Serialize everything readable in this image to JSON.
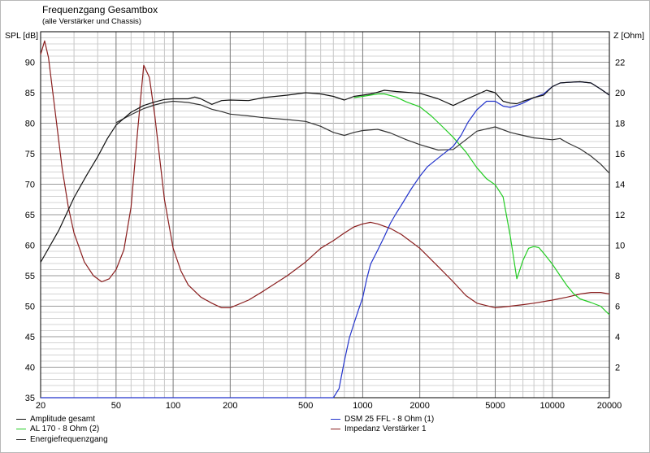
{
  "chart_data": {
    "type": "line",
    "title": "Frequenzgang Gesamtbox",
    "subtitle": "(alle Verstärker und Chassis)",
    "xscale": "log",
    "xlim": [
      20,
      20000
    ],
    "ylim_left": [
      35,
      95
    ],
    "ylim_right": [
      0,
      24
    ],
    "ylabel_left": "SPL [dB]",
    "ylabel_right": "Z [Ohm]",
    "grid": true,
    "legend_position": "bottom",
    "x_ticks": [
      20,
      50,
      100,
      200,
      500,
      1000,
      2000,
      5000,
      10000,
      20000
    ],
    "y_ticks_left": [
      35,
      40,
      45,
      50,
      55,
      60,
      65,
      70,
      75,
      80,
      85,
      90
    ],
    "y_ticks_right": [
      2,
      4,
      6,
      8,
      10,
      12,
      14,
      16,
      18,
      20,
      22
    ],
    "series": [
      {
        "name": "Amplitude gesamt",
        "color": "#111111",
        "axis": "left",
        "points": [
          [
            20,
            57.2
          ],
          [
            25,
            62.5
          ],
          [
            30,
            67.8
          ],
          [
            35,
            71.5
          ],
          [
            40,
            74.5
          ],
          [
            45,
            77.5
          ],
          [
            50,
            79.7
          ],
          [
            60,
            81.8
          ],
          [
            70,
            82.9
          ],
          [
            80,
            83.5
          ],
          [
            90,
            83.9
          ],
          [
            100,
            84.0
          ],
          [
            120,
            84.0
          ],
          [
            130,
            84.3
          ],
          [
            140,
            84.0
          ],
          [
            160,
            83.1
          ],
          [
            180,
            83.7
          ],
          [
            200,
            83.8
          ],
          [
            250,
            83.7
          ],
          [
            300,
            84.2
          ],
          [
            400,
            84.6
          ],
          [
            500,
            85.0
          ],
          [
            600,
            84.8
          ],
          [
            700,
            84.4
          ],
          [
            800,
            83.8
          ],
          [
            900,
            84.4
          ],
          [
            1000,
            84.6
          ],
          [
            1100,
            84.8
          ],
          [
            1200,
            85.1
          ],
          [
            1300,
            85.4
          ],
          [
            1500,
            85.2
          ],
          [
            2000,
            84.9
          ],
          [
            2500,
            84.0
          ],
          [
            3000,
            82.9
          ],
          [
            3500,
            83.9
          ],
          [
            4000,
            84.7
          ],
          [
            4500,
            85.4
          ],
          [
            5000,
            85.0
          ],
          [
            5500,
            83.6
          ],
          [
            6000,
            83.3
          ],
          [
            6500,
            83.2
          ],
          [
            7000,
            83.6
          ],
          [
            8000,
            84.2
          ],
          [
            9000,
            84.6
          ],
          [
            10000,
            86.0
          ],
          [
            11000,
            86.6
          ],
          [
            12000,
            86.7
          ],
          [
            14000,
            86.8
          ],
          [
            16000,
            86.6
          ],
          [
            18000,
            85.6
          ],
          [
            20000,
            84.6
          ]
        ]
      },
      {
        "name": "AL 170 - 8 Ohm (2)",
        "color": "#22cc22",
        "axis": "left",
        "points": [
          [
            900,
            84.2
          ],
          [
            1000,
            84.4
          ],
          [
            1200,
            84.8
          ],
          [
            1300,
            84.8
          ],
          [
            1500,
            84.3
          ],
          [
            1700,
            83.5
          ],
          [
            2000,
            82.7
          ],
          [
            2300,
            81.2
          ],
          [
            2600,
            79.6
          ],
          [
            3000,
            77.7
          ],
          [
            3500,
            75.3
          ],
          [
            4000,
            72.7
          ],
          [
            4500,
            70.9
          ],
          [
            5000,
            69.9
          ],
          [
            5500,
            67.9
          ],
          [
            6000,
            61.5
          ],
          [
            6500,
            54.5
          ],
          [
            7000,
            57.5
          ],
          [
            7500,
            59.5
          ],
          [
            8000,
            59.8
          ],
          [
            8500,
            59.6
          ],
          [
            9000,
            58.7
          ],
          [
            10000,
            56.9
          ],
          [
            11000,
            55.0
          ],
          [
            12000,
            53.3
          ],
          [
            13000,
            52.0
          ],
          [
            14000,
            51.2
          ],
          [
            16000,
            50.6
          ],
          [
            18000,
            50.0
          ],
          [
            20000,
            48.6
          ]
        ]
      },
      {
        "name": "Energiefrequenzgang",
        "color": "#333333",
        "axis": "left",
        "points": [
          [
            50,
            80.1
          ],
          [
            60,
            81.4
          ],
          [
            70,
            82.4
          ],
          [
            80,
            83.0
          ],
          [
            90,
            83.4
          ],
          [
            100,
            83.6
          ],
          [
            120,
            83.4
          ],
          [
            140,
            83.0
          ],
          [
            160,
            82.3
          ],
          [
            180,
            81.9
          ],
          [
            200,
            81.5
          ],
          [
            250,
            81.2
          ],
          [
            300,
            80.9
          ],
          [
            400,
            80.6
          ],
          [
            500,
            80.3
          ],
          [
            600,
            79.5
          ],
          [
            700,
            78.5
          ],
          [
            800,
            78.0
          ],
          [
            900,
            78.5
          ],
          [
            1000,
            78.8
          ],
          [
            1200,
            79.0
          ],
          [
            1400,
            78.4
          ],
          [
            1700,
            77.3
          ],
          [
            2000,
            76.5
          ],
          [
            2500,
            75.6
          ],
          [
            3000,
            75.7
          ],
          [
            3500,
            77.3
          ],
          [
            4000,
            78.7
          ],
          [
            5000,
            79.4
          ],
          [
            6000,
            78.5
          ],
          [
            7000,
            78.0
          ],
          [
            8000,
            77.6
          ],
          [
            10000,
            77.3
          ],
          [
            11000,
            77.5
          ],
          [
            12000,
            76.8
          ],
          [
            14000,
            75.8
          ],
          [
            16000,
            74.6
          ],
          [
            18000,
            73.3
          ],
          [
            20000,
            71.8
          ]
        ]
      },
      {
        "name": "DSM 25 FFL - 8 Ohm (1)",
        "color": "#2233cc",
        "axis": "left",
        "points": [
          [
            20,
            35
          ],
          [
            700,
            35
          ],
          [
            750,
            36.5
          ],
          [
            800,
            41.0
          ],
          [
            850,
            44.8
          ],
          [
            900,
            47.2
          ],
          [
            950,
            49.4
          ],
          [
            1000,
            51.4
          ],
          [
            1050,
            54.5
          ],
          [
            1100,
            56.9
          ],
          [
            1200,
            59.2
          ],
          [
            1300,
            61.4
          ],
          [
            1400,
            63.6
          ],
          [
            1500,
            65.2
          ],
          [
            1600,
            66.6
          ],
          [
            1800,
            69.2
          ],
          [
            2000,
            71.3
          ],
          [
            2200,
            72.9
          ],
          [
            2500,
            74.3
          ],
          [
            2800,
            75.5
          ],
          [
            3000,
            76.2
          ],
          [
            3300,
            78.0
          ],
          [
            3600,
            80.2
          ],
          [
            4000,
            82.2
          ],
          [
            4500,
            83.6
          ],
          [
            5000,
            83.6
          ],
          [
            5500,
            82.8
          ],
          [
            6000,
            82.6
          ],
          [
            6500,
            82.9
          ],
          [
            7000,
            83.3
          ],
          [
            8000,
            84.2
          ],
          [
            9000,
            84.8
          ],
          [
            10000,
            86.0
          ],
          [
            11000,
            86.6
          ],
          [
            12000,
            86.7
          ],
          [
            14000,
            86.8
          ],
          [
            16000,
            86.6
          ],
          [
            18000,
            85.6
          ],
          [
            20000,
            84.6
          ]
        ]
      },
      {
        "name": "Impedanz Verstärker 1",
        "color": "#8a1e1e",
        "axis": "right",
        "points": [
          [
            20,
            22.5
          ],
          [
            21,
            23.4
          ],
          [
            22,
            22.3
          ],
          [
            24,
            18.5
          ],
          [
            26,
            15.0
          ],
          [
            28,
            12.5
          ],
          [
            30,
            10.8
          ],
          [
            34,
            8.9
          ],
          [
            38,
            8.0
          ],
          [
            42,
            7.6
          ],
          [
            46,
            7.8
          ],
          [
            50,
            8.4
          ],
          [
            55,
            9.7
          ],
          [
            60,
            12.5
          ],
          [
            65,
            17.5
          ],
          [
            70,
            21.8
          ],
          [
            75,
            21.0
          ],
          [
            80,
            18.5
          ],
          [
            90,
            13.0
          ],
          [
            100,
            9.8
          ],
          [
            110,
            8.3
          ],
          [
            120,
            7.4
          ],
          [
            140,
            6.6
          ],
          [
            160,
            6.2
          ],
          [
            180,
            5.9
          ],
          [
            200,
            5.9
          ],
          [
            250,
            6.4
          ],
          [
            300,
            7.0
          ],
          [
            400,
            8.0
          ],
          [
            500,
            8.9
          ],
          [
            600,
            9.8
          ],
          [
            700,
            10.3
          ],
          [
            800,
            10.8
          ],
          [
            900,
            11.2
          ],
          [
            1000,
            11.4
          ],
          [
            1100,
            11.5
          ],
          [
            1200,
            11.4
          ],
          [
            1400,
            11.1
          ],
          [
            1600,
            10.7
          ],
          [
            2000,
            9.8
          ],
          [
            2500,
            8.6
          ],
          [
            3000,
            7.6
          ],
          [
            3500,
            6.7
          ],
          [
            4000,
            6.2
          ],
          [
            5000,
            5.9
          ],
          [
            6000,
            6.0
          ],
          [
            7000,
            6.1
          ],
          [
            8000,
            6.2
          ],
          [
            10000,
            6.4
          ],
          [
            12000,
            6.6
          ],
          [
            14000,
            6.8
          ],
          [
            16000,
            6.9
          ],
          [
            18000,
            6.9
          ],
          [
            20000,
            6.8
          ]
        ]
      }
    ]
  }
}
